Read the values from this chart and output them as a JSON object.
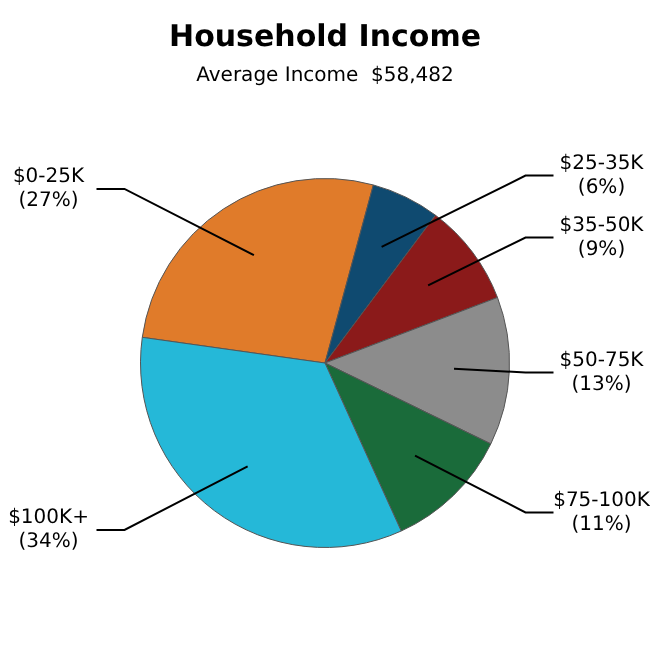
{
  "chart_data": {
    "type": "pie",
    "title": "Household Income",
    "subtitle": "Average Income  $58,482",
    "categories": [
      "$0-25K",
      "$25-35K",
      "$35-50K",
      "$50-75K",
      "$75-100K",
      "$100K+"
    ],
    "values": [
      27,
      6,
      9,
      13,
      11,
      34
    ],
    "value_labels": [
      "(27%)",
      "(6%)",
      "(9%)",
      "(13%)",
      "(11%)",
      "(34%)"
    ],
    "colors": [
      "#e07b2a",
      "#0f4a70",
      "#8b1a1a",
      "#8c8c8c",
      "#1a6b3a",
      "#25b8d8"
    ],
    "legend": false
  }
}
